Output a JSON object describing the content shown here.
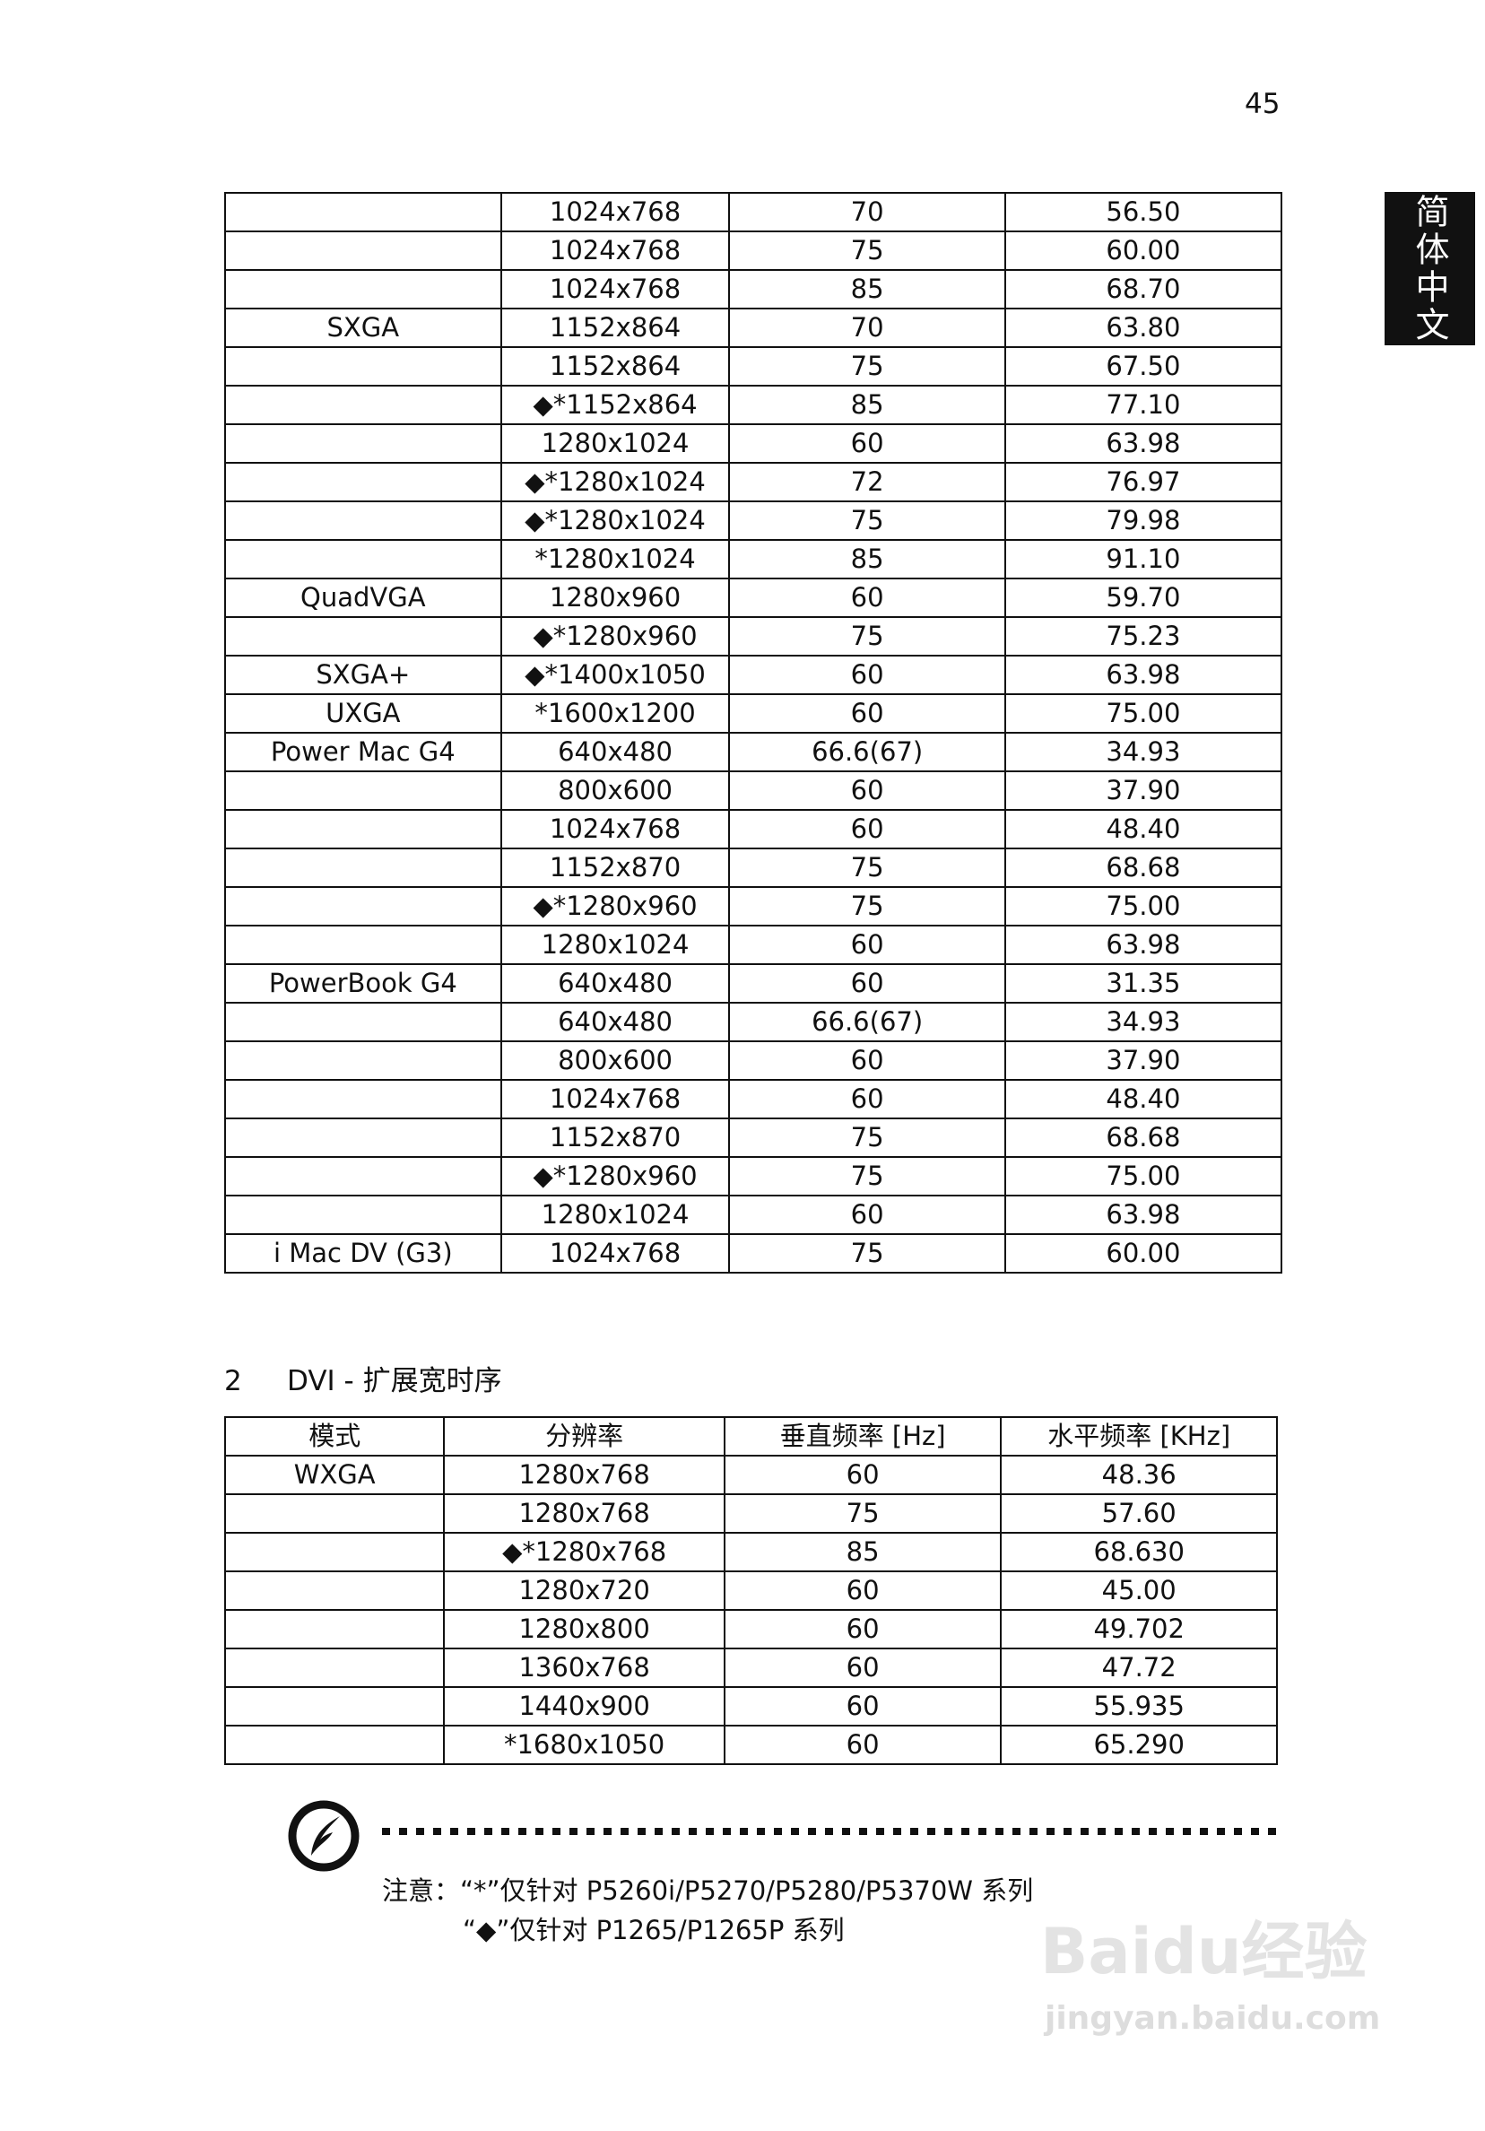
{
  "page_number": "45",
  "side_tab": "简体中文",
  "table1": {
    "rows": [
      [
        "",
        "1024x768",
        "70",
        "56.50"
      ],
      [
        "",
        "1024x768",
        "75",
        "60.00"
      ],
      [
        "",
        "1024x768",
        "85",
        "68.70"
      ],
      [
        "SXGA",
        "1152x864",
        "70",
        "63.80"
      ],
      [
        "",
        "1152x864",
        "75",
        "67.50"
      ],
      [
        "",
        "◆*1152x864",
        "85",
        "77.10"
      ],
      [
        "",
        "1280x1024",
        "60",
        "63.98"
      ],
      [
        "",
        "◆*1280x1024",
        "72",
        "76.97"
      ],
      [
        "",
        "◆*1280x1024",
        "75",
        "79.98"
      ],
      [
        "",
        "*1280x1024",
        "85",
        "91.10"
      ],
      [
        "QuadVGA",
        "1280x960",
        "60",
        "59.70"
      ],
      [
        "",
        "◆*1280x960",
        "75",
        "75.23"
      ],
      [
        "SXGA+",
        "◆*1400x1050",
        "60",
        "63.98"
      ],
      [
        "UXGA",
        "*1600x1200",
        "60",
        "75.00"
      ],
      [
        "Power Mac G4",
        "640x480",
        "66.6(67)",
        "34.93"
      ],
      [
        "",
        "800x600",
        "60",
        "37.90"
      ],
      [
        "",
        "1024x768",
        "60",
        "48.40"
      ],
      [
        "",
        "1152x870",
        "75",
        "68.68"
      ],
      [
        "",
        "◆*1280x960",
        "75",
        "75.00"
      ],
      [
        "",
        "1280x1024",
        "60",
        "63.98"
      ],
      [
        "PowerBook G4",
        "640x480",
        "60",
        "31.35"
      ],
      [
        "",
        "640x480",
        "66.6(67)",
        "34.93"
      ],
      [
        "",
        "800x600",
        "60",
        "37.90"
      ],
      [
        "",
        "1024x768",
        "60",
        "48.40"
      ],
      [
        "",
        "1152x870",
        "75",
        "68.68"
      ],
      [
        "",
        "◆*1280x960",
        "75",
        "75.00"
      ],
      [
        "",
        "1280x1024",
        "60",
        "63.98"
      ],
      [
        "i Mac DV (G3)",
        "1024x768",
        "75",
        "60.00"
      ]
    ]
  },
  "section": {
    "number": "2",
    "title": "DVI - 扩展宽时序"
  },
  "table2": {
    "headers": [
      "模式",
      "分辨率",
      "垂直频率 [Hz]",
      "水平频率 [KHz]"
    ],
    "rows": [
      [
        "WXGA",
        "1280x768",
        "60",
        "48.36"
      ],
      [
        "",
        "1280x768",
        "75",
        "57.60"
      ],
      [
        "",
        "◆*1280x768",
        "85",
        "68.630"
      ],
      [
        "",
        "1280x720",
        "60",
        "45.00"
      ],
      [
        "",
        "1280x800",
        "60",
        "49.702"
      ],
      [
        "",
        "1360x768",
        "60",
        "47.72"
      ],
      [
        "",
        "1440x900",
        "60",
        "55.935"
      ],
      [
        "",
        "*1680x1050",
        "60",
        "65.290"
      ]
    ]
  },
  "notes": {
    "line1": "注意：“*”仅针对 P5260i/P5270/P5280/P5370W 系列",
    "line2": "“◆”仅针对 P1265/P1265P 系列"
  },
  "watermark": {
    "logo": "Baidu经验",
    "url": "jingyan.baidu.com"
  }
}
